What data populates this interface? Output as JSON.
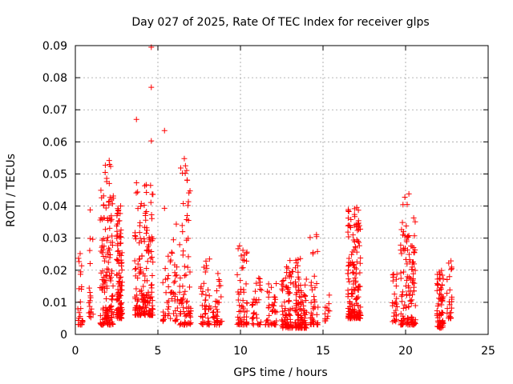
{
  "chart_data": {
    "type": "scatter",
    "title": "Day 027 of 2025, Rate Of TEC Index for receiver glps",
    "xlabel": "GPS time / hours",
    "ylabel": "ROTI / TECUs",
    "xlim": [
      0,
      25
    ],
    "ylim": [
      0,
      0.09
    ],
    "xticks": [
      0,
      5,
      10,
      15,
      20,
      25
    ],
    "yticks": [
      0,
      0.01,
      0.02,
      0.03,
      0.04,
      0.05,
      0.06,
      0.07,
      0.08,
      0.09
    ],
    "grid": true,
    "marker": "+",
    "color": "#ff0000",
    "clusters": [
      {
        "x": [
          0.15,
          0.45
        ],
        "y": [
          0.003,
          0.029
        ],
        "n": 25
      },
      {
        "x": [
          0.8,
          1.1
        ],
        "y": [
          0.005,
          0.039
        ],
        "n": 18
      },
      {
        "x": [
          1.5,
          2.3
        ],
        "y": [
          0.003,
          0.054
        ],
        "n": 150
      },
      {
        "x": [
          2.5,
          2.85
        ],
        "y": [
          0.005,
          0.04
        ],
        "n": 120
      },
      {
        "x": [
          3.6,
          4.7
        ],
        "y": [
          0.006,
          0.048
        ],
        "n": 180
      },
      {
        "x": [
          5.3,
          6.2
        ],
        "y": [
          0.004,
          0.035
        ],
        "n": 55
      },
      {
        "x": [
          6.3,
          7.0
        ],
        "y": [
          0.003,
          0.055
        ],
        "n": 80
      },
      {
        "x": [
          7.6,
          8.2
        ],
        "y": [
          0.003,
          0.024
        ],
        "n": 45
      },
      {
        "x": [
          8.3,
          8.9
        ],
        "y": [
          0.003,
          0.02
        ],
        "n": 35
      },
      {
        "x": [
          9.8,
          10.4
        ],
        "y": [
          0.003,
          0.028
        ],
        "n": 55
      },
      {
        "x": [
          10.7,
          11.3
        ],
        "y": [
          0.003,
          0.018
        ],
        "n": 30
      },
      {
        "x": [
          11.5,
          12.2
        ],
        "y": [
          0.003,
          0.017
        ],
        "n": 40
      },
      {
        "x": [
          12.5,
          13.2
        ],
        "y": [
          0.002,
          0.025
        ],
        "n": 80
      },
      {
        "x": [
          13.3,
          14.0
        ],
        "y": [
          0.002,
          0.024
        ],
        "n": 110
      },
      {
        "x": [
          14.2,
          14.7
        ],
        "y": [
          0.003,
          0.032
        ],
        "n": 40
      },
      {
        "x": [
          15.1,
          15.4
        ],
        "y": [
          0.004,
          0.014
        ],
        "n": 12
      },
      {
        "x": [
          16.5,
          17.3
        ],
        "y": [
          0.005,
          0.04
        ],
        "n": 170
      },
      {
        "x": [
          19.2,
          19.5
        ],
        "y": [
          0.004,
          0.019
        ],
        "n": 25
      },
      {
        "x": [
          19.7,
          20.6
        ],
        "y": [
          0.003,
          0.044
        ],
        "n": 130
      },
      {
        "x": [
          21.9,
          22.3
        ],
        "y": [
          0.002,
          0.02
        ],
        "n": 70
      },
      {
        "x": [
          22.5,
          22.8
        ],
        "y": [
          0.005,
          0.023
        ],
        "n": 25
      }
    ],
    "outliers": [
      {
        "x": 4.6,
        "y": 0.0895
      },
      {
        "x": 4.6,
        "y": 0.077
      },
      {
        "x": 3.7,
        "y": 0.067
      },
      {
        "x": 5.4,
        "y": 0.0635
      },
      {
        "x": 4.6,
        "y": 0.0603
      },
      {
        "x": 6.6,
        "y": 0.0548
      },
      {
        "x": 2.05,
        "y": 0.0542
      },
      {
        "x": 20.2,
        "y": 0.0438
      },
      {
        "x": 5.4,
        "y": 0.0393
      },
      {
        "x": 0.9,
        "y": 0.0388
      }
    ]
  }
}
